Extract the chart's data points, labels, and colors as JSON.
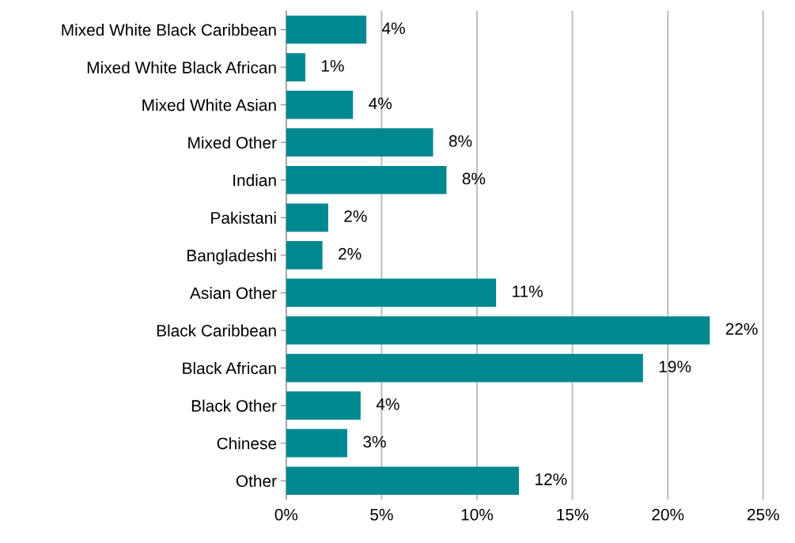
{
  "chart_data": {
    "type": "bar",
    "orientation": "horizontal",
    "categories": [
      "Mixed White Black Caribbean",
      "Mixed White Black African",
      "Mixed White Asian",
      "Mixed Other",
      "Indian",
      "Pakistani",
      "Bangladeshi",
      "Asian Other",
      "Black Caribbean",
      "Black African",
      "Black Other",
      "Chinese",
      "Other"
    ],
    "values": [
      4.2,
      1.0,
      3.5,
      7.7,
      8.4,
      2.2,
      1.9,
      11.0,
      22.2,
      18.7,
      3.9,
      3.2,
      12.2
    ],
    "value_labels": [
      "4%",
      "1%",
      "4%",
      "8%",
      "8%",
      "2%",
      "2%",
      "11%",
      "22%",
      "19%",
      "4%",
      "3%",
      "12%"
    ],
    "color": "#008890",
    "xlim": [
      0,
      25
    ],
    "xticks": [
      {
        "value": 0,
        "label": "0%"
      },
      {
        "value": 5,
        "label": "5%"
      },
      {
        "value": 10,
        "label": "10%"
      },
      {
        "value": 15,
        "label": "15%"
      },
      {
        "value": 20,
        "label": "20%"
      },
      {
        "value": 25,
        "label": "25%"
      }
    ],
    "grid": "x",
    "legend": false
  }
}
